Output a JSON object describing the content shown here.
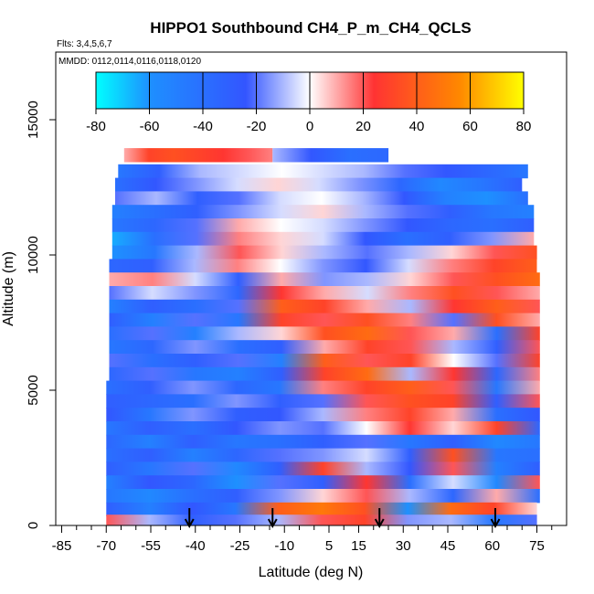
{
  "chart_data": {
    "type": "heatmap",
    "title": "HIPPO1 Southbound CH4_P_m_CH4_QCLS",
    "flights_label": "Flts: 3,4,5,6,7",
    "mmdd_label": "MMDD: 0112,0114,0116,0118,0120",
    "xlabel": "Latitude (deg N)",
    "ylabel": "Altitude (m)",
    "xlim": [
      -87,
      85
    ],
    "ylim": [
      0,
      17500
    ],
    "x_ticks": [
      -85,
      -70,
      -55,
      -40,
      -25,
      -10,
      5,
      15,
      30,
      45,
      60,
      75
    ],
    "x_tick_labels": [
      "-85",
      "-70",
      "-55",
      "-40",
      "-25",
      "-10",
      "5",
      "15",
      "30",
      "45",
      "60",
      "75"
    ],
    "x_minor_ticks": [
      -80,
      -75,
      -65,
      -60,
      -50,
      -45,
      -35,
      -30,
      -20,
      -15,
      -5,
      0,
      10,
      20,
      25,
      35,
      40,
      50,
      55,
      65,
      70,
      80
    ],
    "y_ticks": [
      0,
      5000,
      10000,
      15000
    ],
    "y_tick_labels": [
      "0",
      "5000",
      "10000",
      "15000"
    ],
    "colorbar": {
      "range": [
        -80,
        80
      ],
      "ticks": [
        -80,
        -60,
        -40,
        -20,
        0,
        20,
        40,
        60,
        80
      ],
      "tick_labels": [
        "-80",
        "-60",
        "-40",
        "-20",
        "0",
        "20",
        "40",
        "60",
        "80"
      ],
      "stops": [
        "#00ffff",
        "#1e90ff",
        "#3355ff",
        "#ffffff",
        "#ff3333",
        "#ff8800",
        "#ffff00"
      ]
    },
    "profile_arrows_latitude": [
      -42,
      -14,
      22,
      61
    ],
    "data_extent": {
      "lat_min": -70,
      "lat_max": 77,
      "alt_min": 0,
      "alt_max": 14000
    },
    "bands": [
      {
        "alt": 13700,
        "lat": [
          -64,
          -14
        ],
        "v": [
          10,
          30,
          35,
          30,
          25,
          20,
          15
        ],
        "ext_lat": [
          -14,
          25
        ],
        "ext_v": [
          -10,
          -25,
          -40,
          -35
        ]
      },
      {
        "alt": 13100,
        "lat": [
          -66,
          72
        ],
        "v": [
          -45,
          -30,
          -10,
          -5,
          0,
          -5,
          -10,
          -20,
          -25,
          -35,
          -45
        ]
      },
      {
        "alt": 12600,
        "lat": [
          -67,
          70
        ],
        "v": [
          -40,
          -25,
          -15,
          -5,
          5,
          -5,
          -15,
          -35,
          -55,
          -45,
          -30
        ]
      },
      {
        "alt": 12100,
        "lat": [
          -67,
          72
        ],
        "v": [
          -20,
          -10,
          -30,
          -20,
          -5,
          0,
          -10,
          -25,
          -50,
          -60,
          -40
        ]
      },
      {
        "alt": 11600,
        "lat": [
          -68,
          74
        ],
        "v": [
          -50,
          -40,
          -30,
          -15,
          -5,
          5,
          -10,
          -20,
          -30,
          -45,
          -50
        ]
      },
      {
        "alt": 11100,
        "lat": [
          -68,
          74
        ],
        "v": [
          -45,
          -35,
          -20,
          10,
          0,
          -5,
          -15,
          -25,
          -35,
          -40,
          -30
        ]
      },
      {
        "alt": 10600,
        "lat": [
          -68,
          74
        ],
        "v": [
          -65,
          -40,
          -20,
          15,
          5,
          -5,
          -25,
          -40,
          -30,
          -15,
          10
        ]
      },
      {
        "alt": 10100,
        "lat": [
          -68,
          75
        ],
        "v": [
          -60,
          -45,
          -10,
          20,
          5,
          -10,
          -20,
          -10,
          5,
          20,
          35
        ]
      },
      {
        "alt": 9600,
        "lat": [
          -69,
          75
        ],
        "v": [
          -35,
          -30,
          -10,
          15,
          0,
          -15,
          -25,
          -5,
          15,
          30,
          40
        ]
      },
      {
        "alt": 9100,
        "lat": [
          -69,
          76
        ],
        "v": [
          10,
          15,
          -5,
          -30,
          10,
          -15,
          -10,
          5,
          20,
          35,
          45
        ]
      },
      {
        "alt": 8600,
        "lat": [
          -69,
          76
        ],
        "v": [
          -20,
          -5,
          -15,
          -35,
          25,
          10,
          -5,
          15,
          35,
          20,
          10
        ]
      },
      {
        "alt": 8100,
        "lat": [
          -69,
          76
        ],
        "v": [
          -50,
          -30,
          -40,
          -20,
          40,
          30,
          10,
          -10,
          25,
          40,
          20
        ]
      },
      {
        "alt": 7600,
        "lat": [
          -69,
          76
        ],
        "v": [
          -30,
          -50,
          -20,
          -45,
          30,
          20,
          35,
          15,
          -20,
          35,
          10
        ]
      },
      {
        "alt": 7100,
        "lat": [
          -69,
          76
        ],
        "v": [
          -40,
          -20,
          -50,
          -10,
          5,
          35,
          45,
          20,
          10,
          -40,
          30
        ]
      },
      {
        "alt": 6600,
        "lat": [
          -69,
          76
        ],
        "v": [
          -45,
          -35,
          -15,
          -40,
          -30,
          10,
          30,
          20,
          -10,
          -30,
          20
        ]
      },
      {
        "alt": 6100,
        "lat": [
          -69,
          76
        ],
        "v": [
          -20,
          -40,
          -30,
          -20,
          -50,
          40,
          20,
          30,
          0,
          -20,
          30
        ]
      },
      {
        "alt": 5600,
        "lat": [
          -69,
          76
        ],
        "v": [
          -35,
          -20,
          -45,
          -50,
          -30,
          30,
          45,
          -10,
          25,
          -35,
          15
        ]
      },
      {
        "alt": 5100,
        "lat": [
          -70,
          76
        ],
        "v": [
          -40,
          -30,
          -15,
          -35,
          -45,
          15,
          30,
          40,
          20,
          -45,
          10
        ]
      },
      {
        "alt": 4600,
        "lat": [
          -70,
          76
        ],
        "v": [
          -30,
          -35,
          -40,
          -15,
          -30,
          -20,
          20,
          35,
          30,
          -30,
          20
        ]
      },
      {
        "alt": 4100,
        "lat": [
          -70,
          76
        ],
        "v": [
          -25,
          -45,
          -15,
          -30,
          -25,
          -10,
          15,
          30,
          10,
          -40,
          -25
        ]
      },
      {
        "alt": 3600,
        "lat": [
          -70,
          76
        ],
        "v": [
          -45,
          -30,
          -40,
          -25,
          -15,
          -20,
          0,
          25,
          5,
          30,
          -35
        ]
      },
      {
        "alt": 3100,
        "lat": [
          -70,
          76
        ],
        "v": [
          -35,
          -50,
          -30,
          -45,
          -40,
          -30,
          -20,
          -45,
          -30,
          -55,
          -45
        ]
      },
      {
        "alt": 2600,
        "lat": [
          -70,
          76
        ],
        "v": [
          -40,
          -30,
          -50,
          -35,
          -20,
          -15,
          -5,
          -30,
          35,
          -45,
          -40
        ]
      },
      {
        "alt": 2100,
        "lat": [
          -70,
          76
        ],
        "v": [
          -30,
          -45,
          -20,
          -55,
          -30,
          30,
          -10,
          -25,
          20,
          -50,
          -30
        ]
      },
      {
        "alt": 1600,
        "lat": [
          -70,
          76
        ],
        "v": [
          -50,
          -25,
          -35,
          -60,
          -20,
          -30,
          25,
          -40,
          -5,
          -55,
          20
        ]
      },
      {
        "alt": 1100,
        "lat": [
          -70,
          76
        ],
        "v": [
          -45,
          -55,
          -40,
          -30,
          -15,
          5,
          20,
          -10,
          -35,
          10,
          -40
        ]
      },
      {
        "alt": 600,
        "lat": [
          -70,
          75
        ],
        "v": [
          -30,
          -50,
          -25,
          -45,
          40,
          50,
          35,
          -60,
          45,
          30,
          5
        ]
      },
      {
        "alt": 150,
        "lat": [
          -70,
          75
        ],
        "v": [
          20,
          -10,
          -30,
          -20,
          -10,
          20,
          30,
          -15,
          -10,
          -45,
          -20
        ]
      }
    ]
  }
}
